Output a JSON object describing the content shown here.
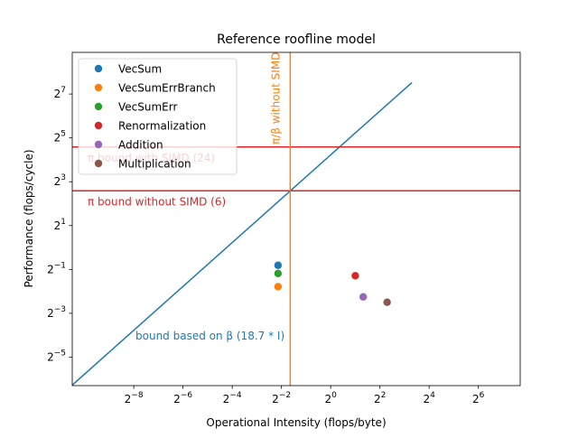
{
  "chart_data": {
    "type": "scatter",
    "title": "Reference roofline model",
    "xlabel": "Operational Intensity (flops/byte)",
    "ylabel": "Performance (flops/cycle)",
    "xscale": "log2",
    "yscale": "log2",
    "xlim_exponent": [
      -10.5,
      7.7
    ],
    "ylim_exponent": [
      -6.3,
      8.9
    ],
    "grid": false,
    "legend_position": "upper-left",
    "x_ticks": [
      {
        "exp": -8,
        "base": "2",
        "sup": "−8"
      },
      {
        "exp": -6,
        "base": "2",
        "sup": "−6"
      },
      {
        "exp": -4,
        "base": "2",
        "sup": "−4"
      },
      {
        "exp": -2,
        "base": "2",
        "sup": "−2"
      },
      {
        "exp": 0,
        "base": "2",
        "sup": "0"
      },
      {
        "exp": 2,
        "base": "2",
        "sup": "2"
      },
      {
        "exp": 4,
        "base": "2",
        "sup": "4"
      },
      {
        "exp": 6,
        "base": "2",
        "sup": "6"
      }
    ],
    "y_ticks": [
      {
        "exp": -5,
        "base": "2",
        "sup": "−5"
      },
      {
        "exp": -3,
        "base": "2",
        "sup": "−3"
      },
      {
        "exp": -1,
        "base": "2",
        "sup": "−1"
      },
      {
        "exp": 1,
        "base": "2",
        "sup": "1"
      },
      {
        "exp": 3,
        "base": "2",
        "sup": "3"
      },
      {
        "exp": 5,
        "base": "2",
        "sup": "5"
      },
      {
        "exp": 7,
        "base": "2",
        "sup": "7"
      }
    ],
    "series": [
      {
        "name": "VecSum",
        "color": "#1f77b4",
        "x": 0.227,
        "y": 0.57
      },
      {
        "name": "VecSumErrBranch",
        "color": "#ff7f0e",
        "x": 0.227,
        "y": 0.29
      },
      {
        "name": "VecSumErr",
        "color": "#2ca02c",
        "x": 0.227,
        "y": 0.44
      },
      {
        "name": "Renormalization",
        "color": "#d62728",
        "x": 2.0,
        "y": 0.41
      },
      {
        "name": "Addition",
        "color": "#9467bd",
        "x": 2.5,
        "y": 0.21
      },
      {
        "name": "Multiplication",
        "color": "#8c564b",
        "x": 4.9,
        "y": 0.177
      }
    ],
    "roofs": [
      {
        "kind": "slope",
        "label": "bound based on β (18.7 * I)",
        "slope": 18.7,
        "x_range_exponent": [
          -10.5,
          3.3
        ],
        "color": "#1f77b4"
      },
      {
        "kind": "horizontal",
        "label": "π bound with SIMD (24)",
        "value": 24,
        "color": "#d62728"
      },
      {
        "kind": "horizontal",
        "label": "π bound without SIMD (6)",
        "value": 6,
        "color": "#d62728"
      },
      {
        "kind": "vertical",
        "label": "π/β without SIMD (0.32)",
        "value": 0.32,
        "color": "#ff7f0e"
      }
    ]
  }
}
